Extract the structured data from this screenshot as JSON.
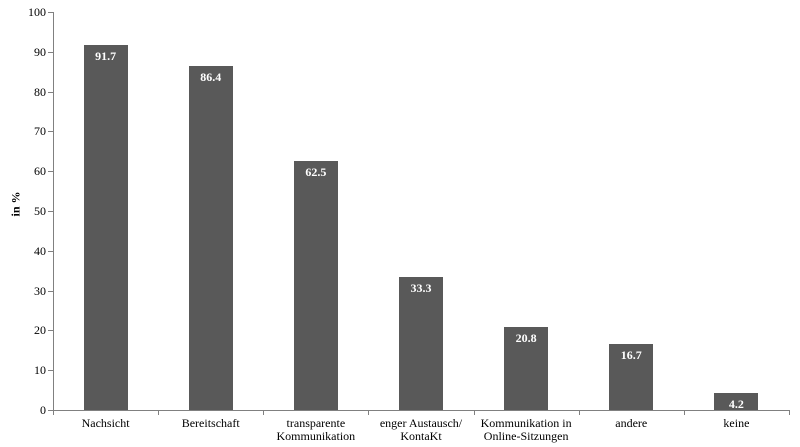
{
  "chart_data": {
    "type": "bar",
    "title": "",
    "xlabel": "",
    "ylabel": "in %",
    "ylim": [
      0,
      100
    ],
    "yticks": [
      0,
      10,
      20,
      30,
      40,
      50,
      60,
      70,
      80,
      90,
      100
    ],
    "categories": [
      "Nachsicht",
      "Bereitschaft",
      "transparente\nKommunikation",
      "enger Austausch/\nKontaKt",
      "Kommunikation in\nOnline-Sitzungen",
      "andere",
      "keine"
    ],
    "values": [
      91.7,
      86.4,
      62.5,
      33.3,
      20.8,
      16.7,
      4.2
    ],
    "value_labels": [
      "91.7",
      "86.4",
      "62.5",
      "33.3",
      "20.8",
      "16.7",
      "4.2"
    ],
    "bar_color": "#595959",
    "value_label_color": "#ffffff",
    "axis_color": "#808080",
    "text_color": "#000000",
    "grid": false,
    "legend": false
  }
}
